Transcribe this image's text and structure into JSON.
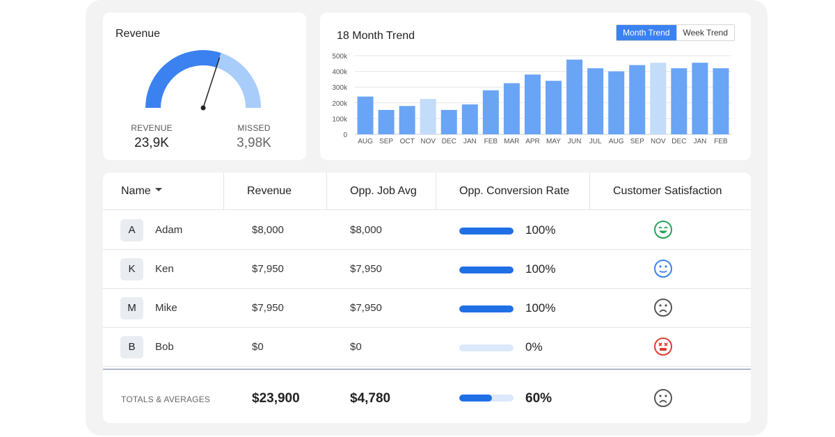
{
  "revenue_card": {
    "title": "Revenue",
    "revenue_label": "REVENUE",
    "revenue_value": "23,9K",
    "missed_label": "MISSED",
    "missed_value": "3,98K",
    "gauge_fraction": 0.6,
    "colors": {
      "filled": "#3b82f0",
      "remaining": "#a9cdfa",
      "needle": "#222222"
    }
  },
  "trend_card": {
    "title": "18 Month Trend",
    "toggle": {
      "active": "Month Trend",
      "inactive": "Week Trend"
    }
  },
  "chart_data": {
    "type": "bar",
    "title": "18 Month Trend",
    "categories": [
      "AUG",
      "SEP",
      "OCT",
      "NOV",
      "DEC",
      "JAN",
      "FEB",
      "MAR",
      "APR",
      "MAY",
      "JUN",
      "JUL",
      "AUG",
      "SEP",
      "NOV",
      "DEC",
      "JAN",
      "FEB"
    ],
    "values": [
      240,
      155,
      180,
      225,
      155,
      190,
      280,
      325,
      380,
      340,
      475,
      420,
      400,
      440,
      455,
      420,
      455,
      420
    ],
    "highlighted_indices": [
      3,
      14
    ],
    "y_ticks": [
      "0",
      "100k",
      "200k",
      "300k",
      "400k",
      "500k"
    ],
    "ylim": [
      0,
      500
    ],
    "grid": true,
    "colors": {
      "bar": "#6aa4f5",
      "bar_light": "#c3dcfa"
    }
  },
  "table": {
    "columns": [
      "Name",
      "Revenue",
      "Opp. Job Avg",
      "Opp. Conversion Rate",
      "Customer Satisfaction"
    ],
    "rows": [
      {
        "initial": "A",
        "name": "Adam",
        "revenue": "$8,000",
        "job_avg": "$8,000",
        "conversion_pct": "100%",
        "conversion": 1.0,
        "satisfaction": "happy-face-icon"
      },
      {
        "initial": "K",
        "name": "Ken",
        "revenue": "$7,950",
        "job_avg": "$7,950",
        "conversion_pct": "100%",
        "conversion": 1.0,
        "satisfaction": "neutral-face-icon"
      },
      {
        "initial": "M",
        "name": "Mike",
        "revenue": "$7,950",
        "job_avg": "$7,950",
        "conversion_pct": "100%",
        "conversion": 1.0,
        "satisfaction": "sad-face-icon"
      },
      {
        "initial": "B",
        "name": "Bob",
        "revenue": "$0",
        "job_avg": "$0",
        "conversion_pct": "0%",
        "conversion": 0.0,
        "satisfaction": "angry-face-icon"
      }
    ],
    "totals": {
      "label": "TOTALS & AVERAGES",
      "revenue": "$23,900",
      "job_avg": "$4,780",
      "conversion_pct": "60%",
      "conversion": 0.6,
      "satisfaction": "sad-face-icon"
    },
    "face_colors": {
      "happy": "#22a35a",
      "neutral": "#3b82f0",
      "sad": "#555555",
      "angry": "#e03a2f"
    }
  }
}
